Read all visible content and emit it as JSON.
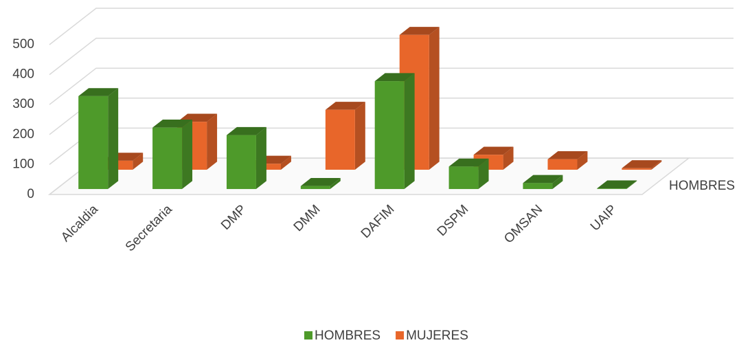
{
  "chart_data": {
    "type": "bar3d",
    "categories": [
      "Alcaldia",
      "Secretaria",
      "DMP",
      "DMM",
      "DAFIM",
      "DSPM",
      "OMSAN",
      "UAIP"
    ],
    "series": [
      {
        "name": "HOMBRES",
        "color": "#4e9a2a",
        "values": [
          310,
          205,
          180,
          10,
          360,
          75,
          20,
          2
        ]
      },
      {
        "name": "MUJERES",
        "color": "#e8662a",
        "values": [
          30,
          160,
          20,
          200,
          450,
          50,
          35,
          5
        ]
      }
    ],
    "ylim": [
      0,
      500
    ],
    "yticks": [
      0,
      100,
      200,
      300,
      400,
      500
    ],
    "grid": true,
    "legend": "bottom"
  }
}
